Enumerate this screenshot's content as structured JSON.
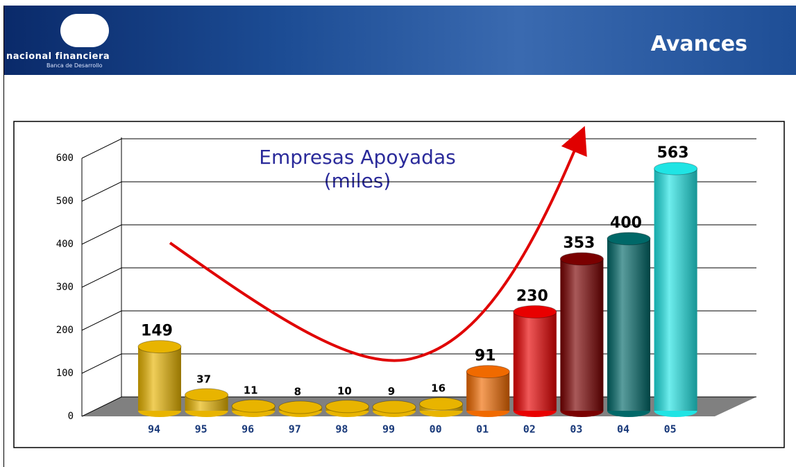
{
  "header": {
    "brand": "nacional financiera",
    "tagline": "Banca de Desarrollo",
    "heading": "Avances"
  },
  "chart_data": {
    "type": "bar",
    "title": "Empresas Apoyadas",
    "subtitle": "(miles)",
    "categories": [
      "94",
      "95",
      "96",
      "97",
      "98",
      "99",
      "00",
      "01",
      "02",
      "03",
      "04",
      "05"
    ],
    "values": [
      149,
      37,
      11,
      8,
      10,
      9,
      16,
      91,
      230,
      353,
      400,
      563
    ],
    "colors": [
      "#e8b400",
      "#e8b400",
      "#e8b400",
      "#e8b400",
      "#e8b400",
      "#e8b400",
      "#e8b400",
      "#f06a00",
      "#e80000",
      "#7a0000",
      "#006868",
      "#20e4e4"
    ],
    "ylim": [
      0,
      600
    ],
    "yticks": [
      0,
      100,
      200,
      300,
      400,
      500,
      600
    ],
    "grid": true
  }
}
